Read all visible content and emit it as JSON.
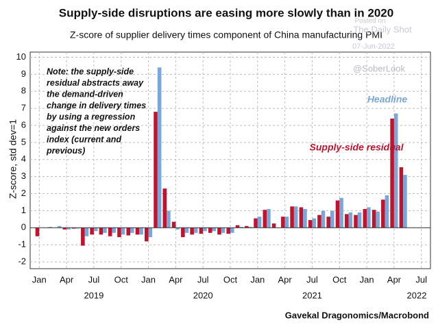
{
  "chart_data": {
    "type": "bar",
    "title": "Supply-side disruptions are easing more slowly than in 2020",
    "subtitle": "Z-score of supplier delivery times component of China manufacturing PMI",
    "y_label": "Z-score, std dev=1",
    "source": "Gavekal Dragonomics/Macrobond",
    "watermark": [
      "Posted on",
      "The Daily Shot",
      "07-Jun-2022",
      "@SoberLook"
    ],
    "note": [
      "Note: the supply-side",
      "residual abstracts away",
      "the demand-driven",
      "change in delivery times",
      "by using a regression",
      "against the new orders",
      "index (current and",
      "previous)"
    ],
    "x": [
      "2019-01",
      "2019-02",
      "2019-03",
      "2019-04",
      "2019-05",
      "2019-06",
      "2019-07",
      "2019-08",
      "2019-09",
      "2019-10",
      "2019-11",
      "2019-12",
      "2020-01",
      "2020-02",
      "2020-03",
      "2020-04",
      "2020-05",
      "2020-06",
      "2020-07",
      "2020-08",
      "2020-09",
      "2020-10",
      "2020-11",
      "2020-12",
      "2021-01",
      "2021-02",
      "2021-03",
      "2021-04",
      "2021-05",
      "2021-06",
      "2021-07",
      "2021-08",
      "2021-09",
      "2021-10",
      "2021-11",
      "2021-12",
      "2022-01",
      "2022-02",
      "2022-03",
      "2022-04",
      "2022-05"
    ],
    "series": [
      {
        "name": "Supply-side residual",
        "color": "#c0142e",
        "values": [
          -0.5,
          0,
          0,
          -0.1,
          -0.05,
          -1.05,
          -0.4,
          -0.4,
          -0.5,
          -0.55,
          -0.45,
          -0.4,
          -0.8,
          6.8,
          2.3,
          0.35,
          -0.55,
          -0.4,
          -0.35,
          -0.3,
          -0.4,
          -0.35,
          0.15,
          0.1,
          0.55,
          1.05,
          0.25,
          0.65,
          1.25,
          1.2,
          0.45,
          0.75,
          0.65,
          1.6,
          0.8,
          0.75,
          1.1,
          1.05,
          1.65,
          6.4,
          3.55
        ]
      },
      {
        "name": "Headline",
        "color": "#7aa6d8",
        "values": [
          0,
          0.05,
          0.1,
          -0.1,
          -0.05,
          -0.5,
          -0.2,
          -0.3,
          -0.3,
          -0.4,
          -0.3,
          -0.4,
          -0.55,
          9.4,
          1.0,
          -0.1,
          -0.3,
          -0.3,
          -0.2,
          -0.2,
          -0.3,
          -0.3,
          0.05,
          0.05,
          0.65,
          1.1,
          0,
          0.65,
          1.25,
          1.1,
          0.55,
          1.0,
          1.0,
          1.75,
          0.9,
          0.9,
          1.2,
          0.95,
          1.9,
          6.7,
          3.1
        ]
      }
    ],
    "xlim": [
      "2018-12",
      "2022-08"
    ],
    "xticks": [
      {
        "value": "2019-01",
        "label": "Jan"
      },
      {
        "value": "2019-04",
        "label": "Apr"
      },
      {
        "value": "2019-07",
        "label": "Jul"
      },
      {
        "value": "2019-10",
        "label": "Oct"
      },
      {
        "value": "2020-01",
        "label": "Jan"
      },
      {
        "value": "2020-04",
        "label": "Apr"
      },
      {
        "value": "2020-07",
        "label": "Jul"
      },
      {
        "value": "2020-10",
        "label": "Oct"
      },
      {
        "value": "2021-01",
        "label": "Jan"
      },
      {
        "value": "2021-04",
        "label": "Apr"
      },
      {
        "value": "2021-07",
        "label": "Jul"
      },
      {
        "value": "2021-10",
        "label": "Oct"
      },
      {
        "value": "2022-01",
        "label": "Jan"
      },
      {
        "value": "2022-04",
        "label": "Apr"
      },
      {
        "value": "2022-07",
        "label": "Jul"
      }
    ],
    "year_labels": [
      "2019",
      "2020",
      "2021",
      "2022"
    ],
    "ylim": [
      -2.4,
      10.3
    ],
    "yticks": [
      -2,
      -1,
      0,
      1,
      2,
      3,
      4,
      5,
      6,
      7,
      8,
      9,
      10
    ],
    "grid": true
  }
}
